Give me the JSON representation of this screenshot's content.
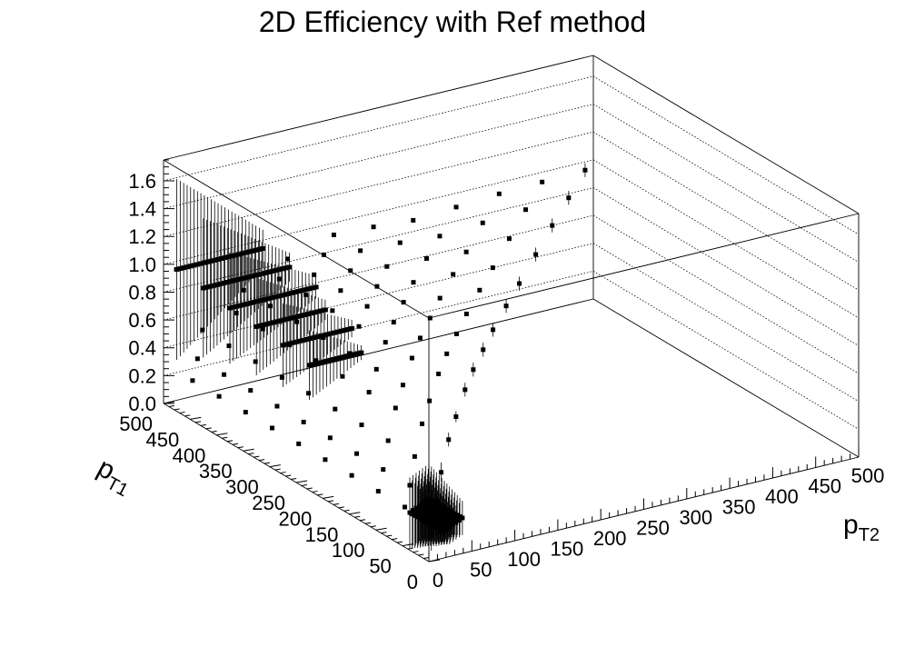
{
  "chart_data": {
    "type": "scatter",
    "title": "2D Efficiency with Ref method",
    "xlabel": {
      "main": "p",
      "sub": "T2"
    },
    "ylabel": {
      "main": "p",
      "sub": "T1"
    },
    "zlabel": "",
    "xlim": [
      0,
      500
    ],
    "ylim": [
      0,
      500
    ],
    "zlim": [
      0,
      1.75
    ],
    "x_ticks": [
      "0",
      "50",
      "100",
      "150",
      "200",
      "250",
      "300",
      "350",
      "400",
      "450",
      "500"
    ],
    "y_ticks": [
      "0",
      "50",
      "100",
      "150",
      "200",
      "250",
      "300",
      "350",
      "400",
      "450",
      "500"
    ],
    "z_ticks": [
      "0.0",
      "0.2",
      "0.4",
      "0.6",
      "0.8",
      "1.0",
      "1.2",
      "1.4",
      "1.6"
    ],
    "grid": true,
    "marker_color": "#000000",
    "diagonal_series": [
      {
        "pT1": 7.5,
        "pT2": 7.5,
        "eff": 0.25,
        "err": 0.2
      },
      {
        "pT1": 22.5,
        "pT2": 22.5,
        "eff": 0.35,
        "err": 0.1
      },
      {
        "pT1": 37.5,
        "pT2": 37.5,
        "eff": 0.5,
        "err": 0.07
      },
      {
        "pT1": 60,
        "pT2": 60,
        "eff": 0.65,
        "err": 0.05
      },
      {
        "pT1": 82.5,
        "pT2": 82.5,
        "eff": 0.73,
        "err": 0.04
      },
      {
        "pT1": 110,
        "pT2": 110,
        "eff": 0.82,
        "err": 0.05
      },
      {
        "pT1": 135,
        "pT2": 135,
        "eff": 0.87,
        "err": 0.05
      },
      {
        "pT1": 165,
        "pT2": 165,
        "eff": 0.9,
        "err": 0.05
      },
      {
        "pT1": 195,
        "pT2": 195,
        "eff": 0.93,
        "err": 0.05
      },
      {
        "pT1": 235,
        "pT2": 235,
        "eff": 0.95,
        "err": 0.05
      },
      {
        "pT1": 275,
        "pT2": 275,
        "eff": 0.96,
        "err": 0.05
      },
      {
        "pT1": 325,
        "pT2": 325,
        "eff": 0.98,
        "err": 0.05
      },
      {
        "pT1": 375,
        "pT2": 375,
        "eff": 1.0,
        "err": 0.05
      },
      {
        "pT1": 425,
        "pT2": 425,
        "eff": 1.01,
        "err": 0.05
      },
      {
        "pT1": 475,
        "pT2": 475,
        "eff": 1.02,
        "err": 0.05
      }
    ],
    "row_bins": [
      {
        "pT1": 475,
        "eff": 1.02,
        "err": 0.65,
        "x_from": 0,
        "x_to": 100
      },
      {
        "pT1": 425,
        "eff": 1.0,
        "err": 0.5,
        "x_from": 0,
        "x_to": 100
      },
      {
        "pT1": 375,
        "eff": 0.97,
        "err": 0.4,
        "x_from": 0,
        "x_to": 100
      },
      {
        "pT1": 325,
        "eff": 0.95,
        "err": 0.35,
        "x_from": 0,
        "x_to": 80
      },
      {
        "pT1": 275,
        "eff": 0.93,
        "err": 0.3,
        "x_from": 0,
        "x_to": 80
      },
      {
        "pT1": 225,
        "eff": 0.9,
        "err": 0.25,
        "x_from": 0,
        "x_to": 60
      }
    ]
  }
}
